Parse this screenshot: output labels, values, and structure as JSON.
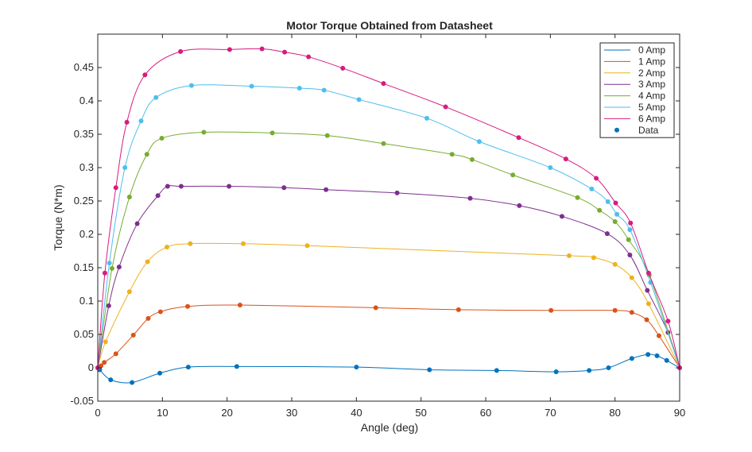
{
  "chart_data": {
    "type": "line",
    "title": "Motor Torque Obtained from Datasheet",
    "xlabel": "Angle (deg)",
    "ylabel": "Torque (N*m)",
    "xlim": [
      0,
      90
    ],
    "ylim": [
      -0.05,
      0.5
    ],
    "xticks": [
      "0",
      "10",
      "20",
      "30",
      "40",
      "50",
      "60",
      "70",
      "80",
      "90"
    ],
    "yticks": [
      "-0.05",
      "0",
      "0.05",
      "0.1",
      "0.15",
      "0.2",
      "0.25",
      "0.3",
      "0.35",
      "0.4",
      "0.45"
    ],
    "grid": false,
    "legend_position": "top-right",
    "data_legend_label": "Data",
    "data_marker_color": "#0072BD",
    "series": [
      {
        "name": "0 Amp",
        "color": "#0072BD",
        "points": [
          [
            0,
            0.0
          ],
          [
            0.3,
            -0.003
          ],
          [
            2,
            -0.018
          ],
          [
            5.3,
            -0.022
          ],
          [
            9.6,
            -0.008
          ],
          [
            14,
            0.001
          ],
          [
            21.5,
            0.002
          ],
          [
            40,
            0.001
          ],
          [
            51.3,
            -0.003
          ],
          [
            61.7,
            -0.004
          ],
          [
            70.9,
            -0.006
          ],
          [
            76,
            -0.004
          ],
          [
            79,
            0.0
          ],
          [
            82.6,
            0.014
          ],
          [
            85.1,
            0.02
          ],
          [
            86.5,
            0.018
          ],
          [
            88,
            0.011
          ],
          [
            90,
            0.0
          ]
        ]
      },
      {
        "name": "1 Amp",
        "color": "#D95319",
        "points": [
          [
            0,
            0.0
          ],
          [
            0.5,
            0.003
          ],
          [
            1,
            0.008
          ],
          [
            2.8,
            0.021
          ],
          [
            5.5,
            0.049
          ],
          [
            7.8,
            0.074
          ],
          [
            9.7,
            0.084
          ],
          [
            13.9,
            0.092
          ],
          [
            22,
            0.094
          ],
          [
            43,
            0.09
          ],
          [
            55.8,
            0.087
          ],
          [
            70.1,
            0.086
          ],
          [
            80,
            0.086
          ],
          [
            82.6,
            0.083
          ],
          [
            84.9,
            0.072
          ],
          [
            86.8,
            0.048
          ],
          [
            90,
            0.0
          ]
        ]
      },
      {
        "name": "2 Amp",
        "color": "#EDB120",
        "points": [
          [
            0,
            0.0
          ],
          [
            1.2,
            0.039
          ],
          [
            4.9,
            0.114
          ],
          [
            7.7,
            0.159
          ],
          [
            10.7,
            0.181
          ],
          [
            14.3,
            0.186
          ],
          [
            22.5,
            0.186
          ],
          [
            32.4,
            0.183
          ],
          [
            72.9,
            0.168
          ],
          [
            76.7,
            0.165
          ],
          [
            80,
            0.155
          ],
          [
            82.6,
            0.135
          ],
          [
            85.2,
            0.096
          ],
          [
            90,
            0.0
          ]
        ]
      },
      {
        "name": "3 Amp",
        "color": "#7E2F8E",
        "points": [
          [
            0,
            0.0
          ],
          [
            1.7,
            0.093
          ],
          [
            3.3,
            0.151
          ],
          [
            6.1,
            0.216
          ],
          [
            9.3,
            0.258
          ],
          [
            10.8,
            0.272
          ],
          [
            12.9,
            0.272
          ],
          [
            20.3,
            0.272
          ],
          [
            28.8,
            0.27
          ],
          [
            35.3,
            0.267
          ],
          [
            46.3,
            0.262
          ],
          [
            57.6,
            0.254
          ],
          [
            65.2,
            0.243
          ],
          [
            71.8,
            0.227
          ],
          [
            78.8,
            0.201
          ],
          [
            82.3,
            0.169
          ],
          [
            85,
            0.116
          ],
          [
            88.2,
            0.053
          ],
          [
            90,
            0.0
          ]
        ]
      },
      {
        "name": "4 Amp",
        "color": "#77AC30",
        "points": [
          [
            0,
            0.0
          ],
          [
            2.2,
            0.149
          ],
          [
            4.9,
            0.256
          ],
          [
            7.6,
            0.32
          ],
          [
            9.9,
            0.344
          ],
          [
            16.4,
            0.353
          ],
          [
            27,
            0.352
          ],
          [
            35.5,
            0.348
          ],
          [
            44.2,
            0.336
          ],
          [
            54.8,
            0.32
          ],
          [
            57.9,
            0.312
          ],
          [
            64.2,
            0.289
          ],
          [
            74.2,
            0.255
          ],
          [
            77.6,
            0.236
          ],
          [
            80,
            0.219
          ],
          [
            82.1,
            0.192
          ],
          [
            85.3,
            0.139
          ],
          [
            90,
            0.0
          ]
        ]
      },
      {
        "name": "5 Amp",
        "color": "#4DBEEE",
        "points": [
          [
            0,
            0.0
          ],
          [
            1.8,
            0.157
          ],
          [
            4.2,
            0.3
          ],
          [
            6.7,
            0.37
          ],
          [
            9,
            0.405
          ],
          [
            14.5,
            0.423
          ],
          [
            23.8,
            0.422
          ],
          [
            31.2,
            0.419
          ],
          [
            35,
            0.416
          ],
          [
            40.4,
            0.402
          ],
          [
            50.9,
            0.374
          ],
          [
            59,
            0.339
          ],
          [
            70,
            0.3
          ],
          [
            76.4,
            0.268
          ],
          [
            78.9,
            0.249
          ],
          [
            80.3,
            0.23
          ],
          [
            82.3,
            0.207
          ],
          [
            85.5,
            0.128
          ],
          [
            90,
            0.0
          ]
        ]
      },
      {
        "name": "6 Amp",
        "color": "#D81B80",
        "points": [
          [
            0,
            0.0
          ],
          [
            1.1,
            0.142
          ],
          [
            2.8,
            0.27
          ],
          [
            4.5,
            0.368
          ],
          [
            7.3,
            0.439
          ],
          [
            12.8,
            0.474
          ],
          [
            20.4,
            0.477
          ],
          [
            25.4,
            0.478
          ],
          [
            28.9,
            0.473
          ],
          [
            32.6,
            0.466
          ],
          [
            37.9,
            0.449
          ],
          [
            44.2,
            0.426
          ],
          [
            53.8,
            0.391
          ],
          [
            65.1,
            0.345
          ],
          [
            72.4,
            0.313
          ],
          [
            77.1,
            0.284
          ],
          [
            80.1,
            0.247
          ],
          [
            82.4,
            0.217
          ],
          [
            85.2,
            0.142
          ],
          [
            88.2,
            0.07
          ],
          [
            90,
            0.0
          ]
        ]
      }
    ]
  }
}
